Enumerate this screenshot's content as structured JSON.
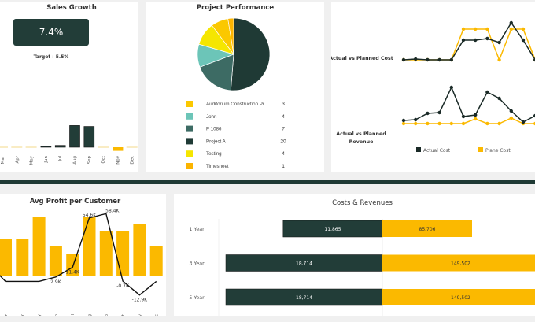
{
  "colors": {
    "dark": "#223d38",
    "yellow": "#fbb900",
    "teal": "#6cc5b8",
    "mid": "#3d6b64",
    "lemon": "#f5e600",
    "orange": "#fbb400",
    "band": "#1f3a35"
  },
  "chart_data": [
    {
      "type": "bar",
      "title": "Sales Growth",
      "kpi": "7.4%",
      "target": "Target : 5.5%",
      "categories": [
        "Mar",
        "Apr",
        "May",
        "Jun",
        "Jul",
        "Aug",
        "Sep",
        "Oct",
        "Nov",
        "Dec"
      ],
      "values": [
        0,
        0,
        0,
        0.5,
        1,
        12,
        11.5,
        0,
        -2,
        0
      ]
    },
    {
      "type": "pie",
      "title": "Project Performance",
      "legend": [
        {
          "label": "Auditorium Construction Pr..",
          "value": 3,
          "color": "#fbc800"
        },
        {
          "label": "John",
          "value": 4,
          "color": "#6cc5b8"
        },
        {
          "label": "P 1086",
          "value": 7,
          "color": "#3d6b64"
        },
        {
          "label": "Project A",
          "value": 20,
          "color": "#1f3a35"
        },
        {
          "label": "Testing",
          "value": 4,
          "color": "#f5e600"
        },
        {
          "label": "Timesheet",
          "value": 1,
          "color": "#fbb400"
        }
      ]
    },
    {
      "type": "line",
      "rows": [
        {
          "label": "Actual vs Planned Cost",
          "actual": [
            2,
            3,
            2,
            2,
            2,
            27,
            27,
            29,
            24,
            49,
            27,
            2
          ],
          "planned": [
            2,
            2,
            2,
            2,
            2,
            41,
            41,
            41,
            2,
            41,
            41,
            2
          ]
        },
        {
          "label": "Actual vs Planned Revenue",
          "actual": [
            4,
            5,
            13,
            14,
            46,
            9,
            11,
            40,
            32,
            16,
            2,
            10
          ],
          "planned": [
            0,
            0,
            0,
            0,
            0,
            0,
            6,
            0,
            0,
            7,
            0,
            0
          ]
        }
      ],
      "legend": [
        "Actual Cost",
        "Plane Cost"
      ]
    },
    {
      "type": "bar+line",
      "title": "Avg Profit per Customer",
      "categories": [
        "Mar",
        "Apr",
        "May",
        "Jun",
        "Jul",
        "Aug",
        "Sep",
        "Oct",
        "Nov",
        "Dec"
      ],
      "bars": [
        48,
        48,
        76,
        38,
        28,
        76,
        57,
        57,
        67,
        38
      ],
      "line": [
        -1,
        -1,
        -1,
        2.9,
        11.4,
        54.6,
        58.4,
        -0.7,
        -12.9,
        -1
      ],
      "labels": [
        "",
        "",
        "",
        "2.9K",
        "11.4K",
        "54.6K",
        "58.4K",
        "-0.7K",
        "-12.9K",
        ""
      ]
    },
    {
      "type": "bar",
      "title": "Costs & Revenues",
      "categories": [
        "1 Year",
        "3 Year",
        "5 Year"
      ],
      "costs": [
        11865,
        18714,
        18714
      ],
      "revenues": [
        85706,
        149502,
        149502
      ],
      "cost_labels": [
        "11,865",
        "18,714",
        "18,714"
      ],
      "revenue_labels": [
        "85,706",
        "149,502",
        "149,502"
      ]
    }
  ]
}
